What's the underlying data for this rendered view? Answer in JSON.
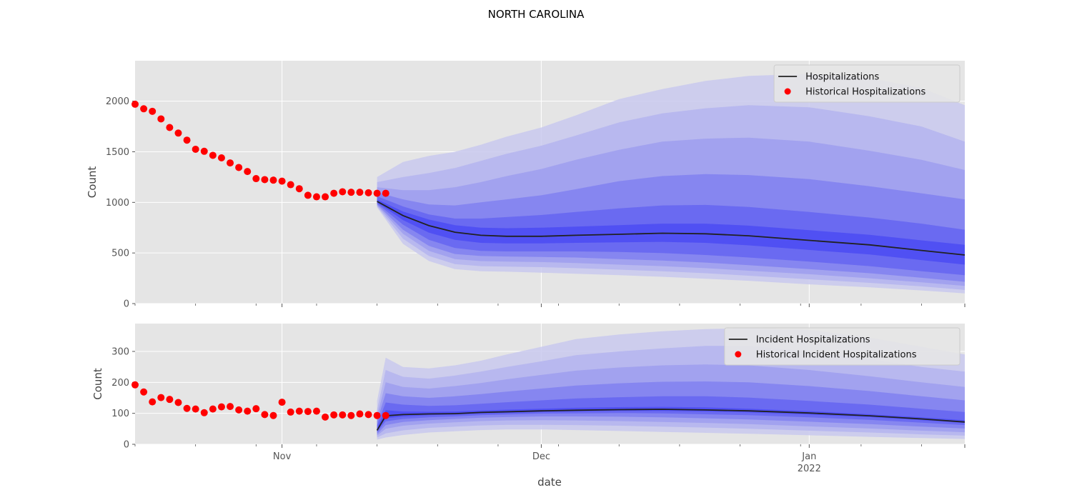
{
  "figure": {
    "title": "NORTH CAROLINA",
    "xlabel": "date"
  },
  "chart_data": [
    {
      "type": "line",
      "panel": "top",
      "ylabel": "Count",
      "ylim": [
        0,
        2400
      ],
      "yticks": [
        0,
        500,
        1000,
        1500,
        2000
      ],
      "xlim": [
        "2021-10-15",
        "2022-01-19"
      ],
      "xticks": [
        {
          "date": "2021-11-01",
          "label": "Nov",
          "sublabel": ""
        },
        {
          "date": "2021-12-01",
          "label": "Dec",
          "sublabel": ""
        },
        {
          "date": "2022-01-01",
          "label": "Jan",
          "sublabel": "2022"
        }
      ],
      "grid": true,
      "legend": {
        "position": "top-right",
        "entries": [
          {
            "label": "Hospitalizations",
            "kind": "line",
            "color": "#222222"
          },
          {
            "label": "Historical Hospitalizations",
            "kind": "marker",
            "color": "#ff0000"
          }
        ]
      },
      "historical": {
        "name": "Historical Hospitalizations",
        "start": "2021-10-15",
        "values": [
          1970,
          1925,
          1900,
          1825,
          1740,
          1685,
          1615,
          1525,
          1505,
          1465,
          1440,
          1390,
          1345,
          1305,
          1235,
          1225,
          1220,
          1210,
          1175,
          1135,
          1070,
          1055,
          1055,
          1090,
          1105,
          1100,
          1100,
          1095,
          1090,
          1090
        ]
      },
      "forecast": {
        "name": "Hospitalizations",
        "dates": [
          "2021-11-12",
          "2021-11-15",
          "2021-11-18",
          "2021-11-21",
          "2021-11-24",
          "2021-11-27",
          "2021-12-01",
          "2021-12-05",
          "2021-12-10",
          "2021-12-15",
          "2021-12-20",
          "2021-12-25",
          "2022-01-01",
          "2022-01-08",
          "2022-01-14",
          "2022-01-19"
        ],
        "median": [
          1010,
          870,
          770,
          705,
          675,
          665,
          665,
          675,
          685,
          695,
          690,
          670,
          625,
          580,
          525,
          480
        ],
        "bands": [
          {
            "lower": [
              950,
              590,
              420,
              340,
              320,
              315,
              305,
              295,
              280,
              265,
              245,
              225,
              190,
              160,
              130,
              100
            ],
            "upper": [
              1250,
              1400,
              1460,
              1500,
              1570,
              1650,
              1740,
              1860,
              2020,
              2120,
              2200,
              2250,
              2270,
              2230,
              2130,
              1960
            ]
          },
          {
            "lower": [
              960,
              640,
              470,
              390,
              370,
              365,
              360,
              350,
              335,
              320,
              300,
              275,
              240,
              205,
              170,
              135
            ],
            "upper": [
              1200,
              1250,
              1290,
              1340,
              1410,
              1480,
              1560,
              1660,
              1790,
              1880,
              1930,
              1960,
              1940,
              1850,
              1750,
              1600
            ]
          },
          {
            "lower": [
              970,
              690,
              520,
              440,
              420,
              415,
              410,
              400,
              385,
              370,
              350,
              325,
              290,
              250,
              210,
              175
            ],
            "upper": [
              1150,
              1120,
              1120,
              1150,
              1200,
              1260,
              1330,
              1420,
              1520,
              1600,
              1630,
              1640,
              1600,
              1510,
              1420,
              1320
            ]
          },
          {
            "lower": [
              980,
              730,
              570,
              490,
              470,
              465,
              460,
              455,
              440,
              425,
              405,
              380,
              340,
              300,
              255,
              215
            ],
            "upper": [
              1100,
              1030,
              980,
              970,
              1000,
              1030,
              1070,
              1130,
              1210,
              1260,
              1280,
              1270,
              1230,
              1160,
              1090,
              1030
            ]
          },
          {
            "lower": [
              990,
              780,
              630,
              550,
              520,
              515,
              515,
              515,
              510,
              500,
              480,
              455,
              415,
              370,
              320,
              280
            ],
            "upper": [
              1060,
              960,
              880,
              840,
              840,
              855,
              875,
              905,
              940,
              970,
              975,
              955,
              905,
              850,
              790,
              730
            ]
          },
          {
            "lower": [
              1000,
              825,
              700,
              630,
              600,
              595,
              595,
              600,
              605,
              610,
              600,
              575,
              530,
              485,
              430,
              385
            ],
            "upper": [
              1030,
              910,
              830,
              775,
              750,
              745,
              750,
              760,
              775,
              790,
              790,
              770,
              725,
              680,
              625,
              580
            ]
          }
        ]
      }
    },
    {
      "type": "line",
      "panel": "bottom",
      "ylabel": "Count",
      "ylim": [
        0,
        390
      ],
      "yticks": [
        0,
        100,
        200,
        300
      ],
      "xlim": [
        "2021-10-15",
        "2022-01-19"
      ],
      "grid": true,
      "legend": {
        "position": "top-right",
        "entries": [
          {
            "label": "Incident Hospitalizations",
            "kind": "line",
            "color": "#222222"
          },
          {
            "label": "Historical Incident Hospitalizations",
            "kind": "marker",
            "color": "#ff0000"
          }
        ]
      },
      "historical": {
        "name": "Historical Incident Hospitalizations",
        "start": "2021-10-15",
        "values": [
          192,
          169,
          137,
          151,
          145,
          135,
          116,
          114,
          102,
          114,
          121,
          122,
          111,
          107,
          115,
          96,
          93,
          136,
          104,
          107,
          106,
          107,
          88,
          95,
          95,
          93,
          98,
          96,
          93,
          93
        ]
      },
      "forecast": {
        "name": "Incident Hospitalizations",
        "dates": [
          "2021-11-12",
          "2021-11-13",
          "2021-11-15",
          "2021-11-18",
          "2021-11-21",
          "2021-11-24",
          "2021-11-27",
          "2021-12-01",
          "2021-12-05",
          "2021-12-10",
          "2021-12-15",
          "2021-12-20",
          "2021-12-25",
          "2022-01-01",
          "2022-01-08",
          "2022-01-14",
          "2022-01-19"
        ],
        "median": [
          45,
          92,
          96,
          98,
          99,
          103,
          105,
          108,
          110,
          112,
          113,
          111,
          108,
          101,
          92,
          82,
          72
        ],
        "bands": [
          {
            "lower": [
              15,
              22,
              30,
              38,
              42,
              46,
              48,
              48,
              46,
              43,
              40,
              37,
              34,
              29,
              24,
              20,
              17
            ],
            "upper": [
              140,
              280,
              250,
              245,
              255,
              270,
              290,
              315,
              340,
              355,
              365,
              372,
              375,
              370,
              345,
              315,
              290
            ]
          },
          {
            "lower": [
              22,
              35,
              45,
              53,
              57,
              61,
              63,
              63,
              62,
              60,
              57,
              54,
              50,
              44,
              38,
              32,
              28
            ],
            "upper": [
              110,
              240,
              218,
              212,
              222,
              235,
              250,
              268,
              288,
              300,
              310,
              318,
              318,
              300,
              275,
              250,
              235
            ]
          },
          {
            "lower": [
              28,
              50,
              60,
              67,
              71,
              75,
              77,
              78,
              77,
              75,
              72,
              69,
              65,
              58,
              51,
              44,
              39
            ],
            "upper": [
              90,
              200,
              185,
              180,
              188,
              198,
              210,
              224,
              238,
              248,
              255,
              258,
              255,
              240,
              220,
              200,
              185
            ]
          },
          {
            "lower": [
              33,
              62,
              72,
              78,
              82,
              86,
              88,
              90,
              90,
              89,
              87,
              84,
              80,
              73,
              65,
              57,
              51
            ],
            "upper": [
              75,
              165,
              155,
              150,
              155,
              162,
              170,
              180,
              190,
              197,
              202,
              203,
              200,
              188,
              172,
              155,
              142
            ]
          },
          {
            "lower": [
              38,
              74,
              82,
              87,
              90,
              94,
              96,
              99,
              100,
              101,
              100,
              97,
              94,
              87,
              79,
              70,
              62
            ],
            "upper": [
              62,
              135,
              128,
              124,
              126,
              131,
              136,
              142,
              148,
              152,
              155,
              155,
              151,
              140,
              128,
              115,
              104
            ]
          },
          {
            "lower": [
              42,
              84,
              90,
              94,
              96,
              99,
              101,
              104,
              106,
              108,
              108,
              106,
              103,
              96,
              88,
              78,
              69
            ],
            "upper": [
              52,
              110,
              106,
              105,
              106,
              109,
              112,
              115,
              118,
              120,
              121,
              119,
              115,
              107,
              97,
              87,
              78
            ]
          }
        ]
      }
    }
  ]
}
